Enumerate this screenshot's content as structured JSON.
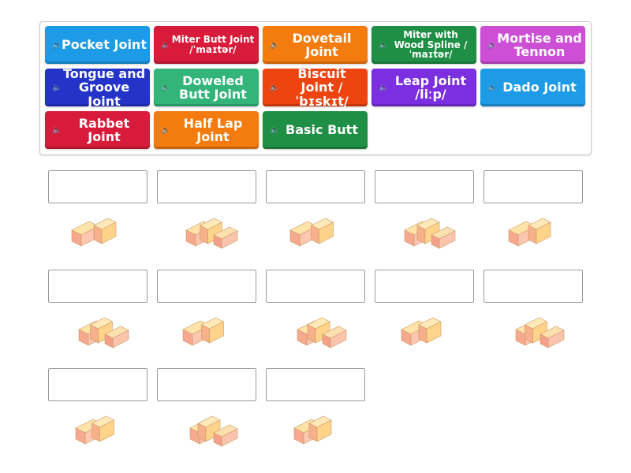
{
  "tiles": [
    {
      "label": "Pocket Joint",
      "color": "#1e9be6",
      "small": false
    },
    {
      "label": "Miter Butt Joint /ˈmaɪtər/",
      "color": "#d81b3a",
      "small": true
    },
    {
      "label": "Dovetail Joint",
      "color": "#f47c0f",
      "small": false
    },
    {
      "label": "Miter with Wood Spline /ˈmaɪtər/",
      "color": "#1f8f45",
      "small": true
    },
    {
      "label": "Mortise and Tennon",
      "color": "#cc4fd6",
      "small": false
    },
    {
      "label": "Tongue and Groove Joint",
      "color": "#2434c8",
      "small": false
    },
    {
      "label": "Doweled Butt Joint",
      "color": "#33b57a",
      "small": false
    },
    {
      "label": "Biscuit Joint /ˈbɪskɪt/",
      "color": "#ee4410",
      "small": false
    },
    {
      "label": "Leap Joint /liːp/",
      "color": "#7b2fe0",
      "small": false
    },
    {
      "label": "Dado Joint",
      "color": "#1e9be6",
      "small": false
    },
    {
      "label": "Rabbet Joint",
      "color": "#d81b3a",
      "small": false
    },
    {
      "label": "Half Lap Joint",
      "color": "#f47c0f",
      "small": false
    },
    {
      "label": "Basic Butt",
      "color": "#1f8f45",
      "small": false
    }
  ],
  "speaker_icon": "speaker-icon",
  "targets": 13
}
